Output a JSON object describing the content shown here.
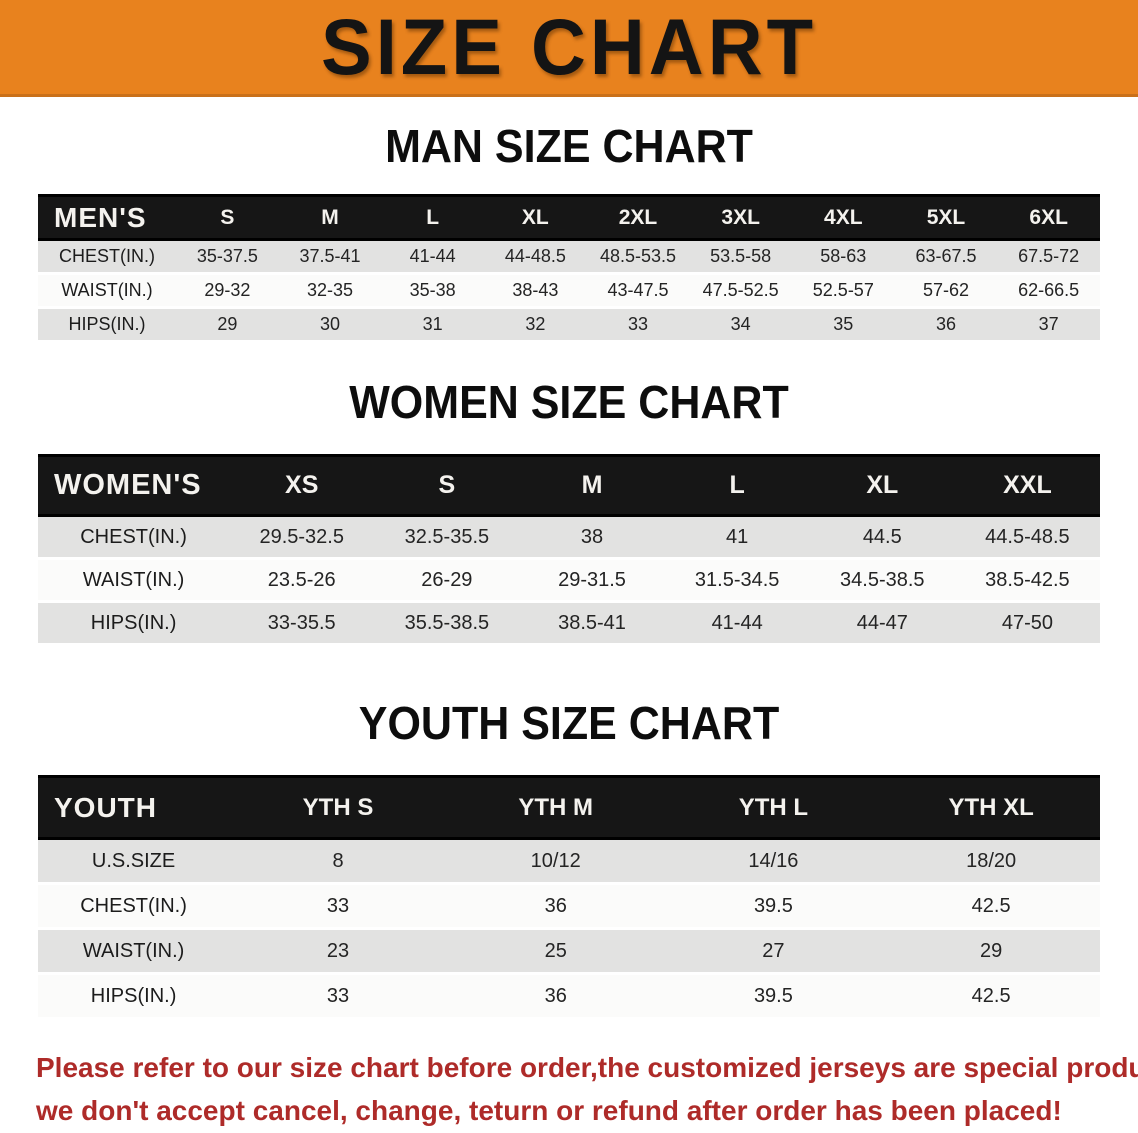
{
  "banner": {
    "title": "SIZE CHART",
    "bg_color": "#E8821E",
    "text_color": "#141414"
  },
  "sections": [
    {
      "heading": "MAN SIZE CHART",
      "table": {
        "header_label": "MEN'S",
        "columns": [
          "S",
          "M",
          "L",
          "XL",
          "2XL",
          "3XL",
          "4XL",
          "5XL",
          "6XL"
        ],
        "rows": [
          {
            "label": "CHEST(IN.)",
            "values": [
              "35-37.5",
              "37.5-41",
              "41-44",
              "44-48.5",
              "48.5-53.5",
              "53.5-58",
              "58-63",
              "63-67.5",
              "67.5-72"
            ]
          },
          {
            "label": "WAIST(IN.)",
            "values": [
              "29-32",
              "32-35",
              "35-38",
              "38-43",
              "43-47.5",
              "47.5-52.5",
              "52.5-57",
              "57-62",
              "62-66.5"
            ]
          },
          {
            "label": "HIPS(IN.)",
            "values": [
              "29",
              "30",
              "31",
              "32",
              "33",
              "34",
              "35",
              "36",
              "37"
            ]
          }
        ]
      }
    },
    {
      "heading": "WOMEN SIZE CHART",
      "table": {
        "header_label": "WOMEN'S",
        "columns": [
          "XS",
          "S",
          "M",
          "L",
          "XL",
          "XXL"
        ],
        "rows": [
          {
            "label": "CHEST(IN.)",
            "values": [
              "29.5-32.5",
              "32.5-35.5",
              "38",
              "41",
              "44.5",
              "44.5-48.5"
            ]
          },
          {
            "label": "WAIST(IN.)",
            "values": [
              "23.5-26",
              "26-29",
              "29-31.5",
              "31.5-34.5",
              "34.5-38.5",
              "38.5-42.5"
            ]
          },
          {
            "label": "HIPS(IN.)",
            "values": [
              "33-35.5",
              "35.5-38.5",
              "38.5-41",
              "41-44",
              "44-47",
              "47-50"
            ]
          }
        ]
      }
    },
    {
      "heading": "YOUTH SIZE CHART",
      "table": {
        "header_label": "YOUTH",
        "columns": [
          "YTH S",
          "YTH M",
          "YTH L",
          "YTH XL"
        ],
        "rows": [
          {
            "label": "U.S.SIZE",
            "values": [
              "8",
              "10/12",
              "14/16",
              "18/20"
            ]
          },
          {
            "label": "CHEST(IN.)",
            "values": [
              "33",
              "36",
              "39.5",
              "42.5"
            ]
          },
          {
            "label": "WAIST(IN.)",
            "values": [
              "23",
              "25",
              "27",
              "29"
            ]
          },
          {
            "label": "HIPS(IN.)",
            "values": [
              "33",
              "36",
              "39.5",
              "42.5"
            ]
          }
        ]
      }
    }
  ],
  "disclaimer": {
    "line1": "Please refer to our size chart before order,the customized jerseys are special products,",
    "line2": "we don't accept cancel, change, teturn or refund after order has been placed!",
    "text_color": "#AE2B29"
  },
  "colors": {
    "accent_orange": "#E8821E",
    "table_header_black": "#161616",
    "row_gray": "#E2E2E1",
    "row_white": "#FBFBFA",
    "disclaimer_red": "#AE2B29"
  }
}
